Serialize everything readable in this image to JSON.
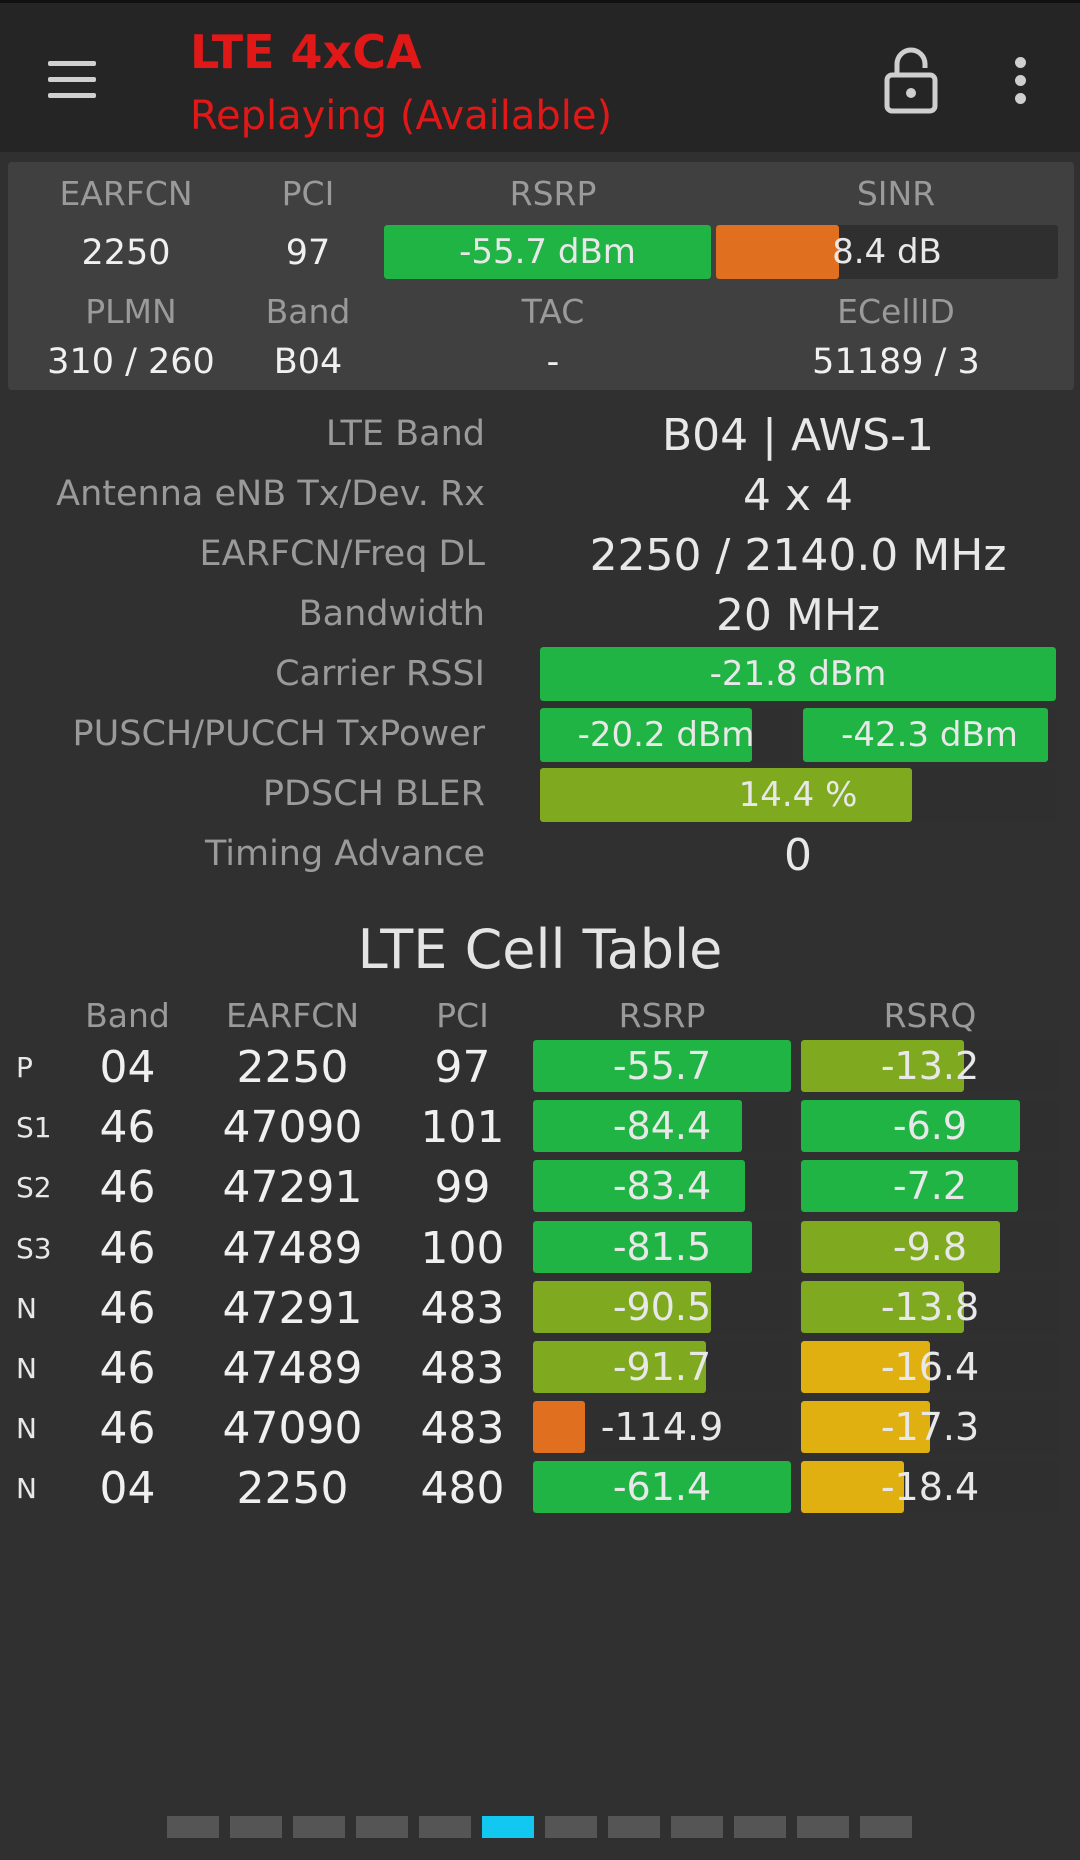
{
  "app_bar": {
    "title": "LTE 4xCA",
    "subtitle": "Replaying (Available)",
    "menu_icon": "hamburger-menu-icon",
    "lock_icon": "lock-open-icon",
    "overflow_icon": "more-vert-icon",
    "title_color": "#e01818"
  },
  "summary": {
    "headers": {
      "earfcn": "EARFCN",
      "pci": "PCI",
      "rsrp": "RSRP",
      "sinr": "SINR",
      "plmn": "PLMN",
      "band": "Band",
      "tac": "TAC",
      "ecellid": "ECellID"
    },
    "earfcn": "2250",
    "pci": "97",
    "rsrp": "-55.7 dBm",
    "rsrp_fill": 1.0,
    "sinr": "8.4 dB",
    "sinr_fill": 0.36,
    "plmn": "310 / 260",
    "band": "B04",
    "tac": "-",
    "ecellid": "51189 / 3"
  },
  "details": {
    "lte_band": {
      "label": "LTE Band",
      "value": "B04 | AWS-1"
    },
    "antenna": {
      "label": "Antenna eNB Tx/Dev. Rx",
      "value": "4 x 4"
    },
    "earfcn_freq": {
      "label": "EARFCN/Freq DL",
      "value": "2250 / 2140.0 MHz"
    },
    "bandwidth": {
      "label": "Bandwidth",
      "value": "20 MHz"
    },
    "carrier_rssi": {
      "label": "Carrier RSSI",
      "value": "-21.8 dBm",
      "fill": 1.0
    },
    "tx_power": {
      "label": "PUSCH/PUCCH TxPower",
      "pusch": "-20.2 dBm",
      "pusch_fill": 0.84,
      "pucch": "-42.3 dBm",
      "pucch_fill": 0.97
    },
    "bler": {
      "label": "PDSCH BLER",
      "value": "14.4 %",
      "fill": 0.72
    },
    "timing_advance": {
      "label": "Timing Advance",
      "value": "0"
    }
  },
  "cell_table": {
    "title": "LTE Cell Table",
    "headers": {
      "band": "Band",
      "earfcn": "EARFCN",
      "pci": "PCI",
      "rsrp": "RSRP",
      "rsrq": "RSRQ"
    },
    "rows": [
      {
        "type": "P",
        "band": "04",
        "earfcn": "2250",
        "pci": "97",
        "rsrp": "-55.7",
        "rsrp_fill": 1.0,
        "rsrp_color": "#20b445",
        "rsrq": "-13.2",
        "rsrq_fill": 0.63,
        "rsrq_color": "#7faa20"
      },
      {
        "type": "S1",
        "band": "46",
        "earfcn": "47090",
        "pci": "101",
        "rsrp": "-84.4",
        "rsrp_fill": 0.81,
        "rsrp_color": "#20b445",
        "rsrq": "-6.9",
        "rsrq_fill": 0.85,
        "rsrq_color": "#20b445"
      },
      {
        "type": "S2",
        "band": "46",
        "earfcn": "47291",
        "pci": "99",
        "rsrp": "-83.4",
        "rsrp_fill": 0.82,
        "rsrp_color": "#20b445",
        "rsrq": "-7.2",
        "rsrq_fill": 0.84,
        "rsrq_color": "#20b445"
      },
      {
        "type": "S3",
        "band": "46",
        "earfcn": "47489",
        "pci": "100",
        "rsrp": "-81.5",
        "rsrp_fill": 0.85,
        "rsrp_color": "#20b445",
        "rsrq": "-9.8",
        "rsrq_fill": 0.77,
        "rsrq_color": "#7faa20"
      },
      {
        "type": "N",
        "band": "46",
        "earfcn": "47291",
        "pci": "483",
        "rsrp": "-90.5",
        "rsrp_fill": 0.69,
        "rsrp_color": "#7faa20",
        "rsrq": "-13.8",
        "rsrq_fill": 0.63,
        "rsrq_color": "#7faa20"
      },
      {
        "type": "N",
        "band": "46",
        "earfcn": "47489",
        "pci": "483",
        "rsrp": "-91.7",
        "rsrp_fill": 0.67,
        "rsrp_color": "#7faa20",
        "rsrq": "-16.4",
        "rsrq_fill": 0.5,
        "rsrq_color": "#e0b010"
      },
      {
        "type": "N",
        "band": "46",
        "earfcn": "47090",
        "pci": "483",
        "rsrp": "-114.9",
        "rsrp_fill": 0.2,
        "rsrp_color": "#e07020",
        "rsrq": "-17.3",
        "rsrq_fill": 0.5,
        "rsrq_color": "#e0b010"
      },
      {
        "type": "N",
        "band": "04",
        "earfcn": "2250",
        "pci": "480",
        "rsrp": "-61.4",
        "rsrp_fill": 1.0,
        "rsrp_color": "#20b445",
        "rsrq": "-18.4",
        "rsrq_fill": 0.4,
        "rsrq_color": "#e0b010"
      }
    ]
  },
  "pager": {
    "count": 12,
    "active_index": 5,
    "active_color": "#12c8f0"
  }
}
